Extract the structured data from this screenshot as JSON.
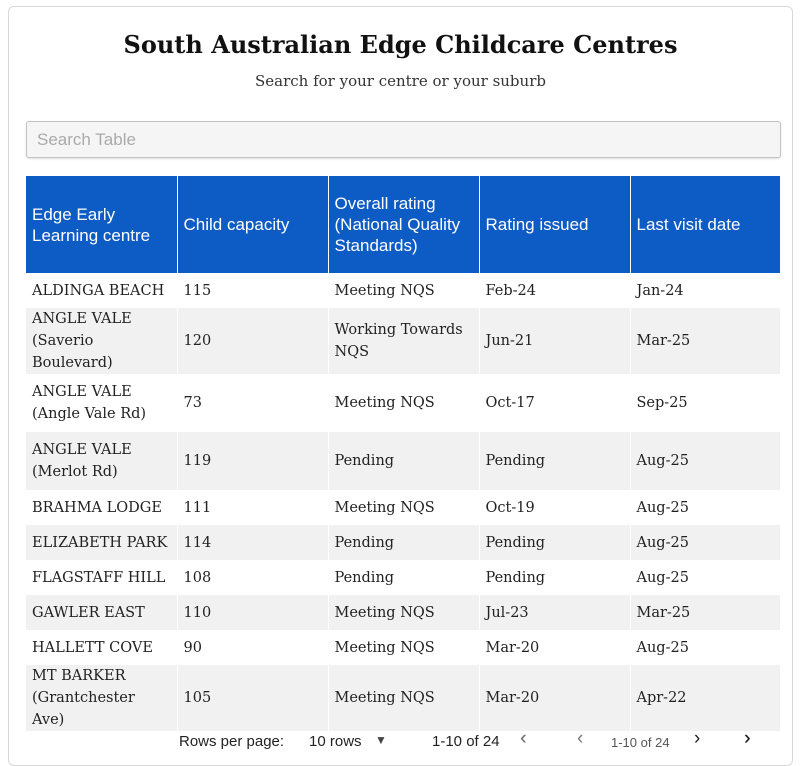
{
  "page": {
    "title": "South Australian Edge Childcare Centres",
    "subtitle": "Search for your centre or your suburb"
  },
  "search": {
    "placeholder": "Search Table",
    "value": ""
  },
  "table": {
    "headers": [
      "Edge Early Learning centre",
      "Child capacity",
      "Overall rating (National Quality Standards)",
      "Rating issued",
      "Last visit date"
    ],
    "rows": [
      [
        "ALDINGA BEACH",
        "",
        "115",
        "Meeting NQS",
        "",
        "Feb-24",
        "Jan-24"
      ],
      [
        "ANGLE VALE",
        "(Saverio Boulevard)",
        "120",
        "Working Towards",
        "NQS",
        "Jun-21",
        "Mar-25"
      ],
      [
        "ANGLE VALE",
        "(Angle Vale Rd)",
        "73",
        "Meeting NQS",
        "",
        "Oct-17",
        "Sep-25"
      ],
      [
        "ANGLE VALE",
        "(Merlot Rd)",
        "119",
        "Pending",
        "",
        "Pending",
        "Aug-25"
      ],
      [
        "BRAHMA LODGE",
        "",
        "111",
        "Meeting NQS",
        "",
        "Oct-19",
        "Aug-25"
      ],
      [
        "ELIZABETH PARK",
        "",
        "114",
        "Pending",
        "",
        "Pending",
        "Aug-25"
      ],
      [
        "FLAGSTAFF HILL",
        "",
        "108",
        "Pending",
        "",
        "Pending",
        "Aug-25"
      ],
      [
        "GAWLER EAST",
        "",
        "110",
        "Meeting NQS",
        "",
        "Jul-23",
        "Mar-25"
      ],
      [
        "HALLETT COVE",
        "",
        "90",
        "Meeting NQS",
        "",
        "Mar-20",
        "Aug-25"
      ],
      [
        "MT BARKER",
        "(Grantchester Ave)",
        "105",
        "Meeting NQS",
        "",
        "Mar-20",
        "Apr-22"
      ]
    ]
  },
  "pagination": {
    "rows_per_page_label": "Rows per page:",
    "rows_per_page_value": "10 rows",
    "range_text": "1-10 of 24",
    "range_text_small": "1-10 of 24"
  },
  "icons": {
    "first": "first-page-icon",
    "prev": "previous-page-icon",
    "next": "next-page-icon",
    "last": "last-page-icon",
    "dropdown": "chevron-down-icon"
  },
  "colors": {
    "header_bg": "#0d5bc4",
    "row_alt_bg": "#f1f1f1"
  }
}
